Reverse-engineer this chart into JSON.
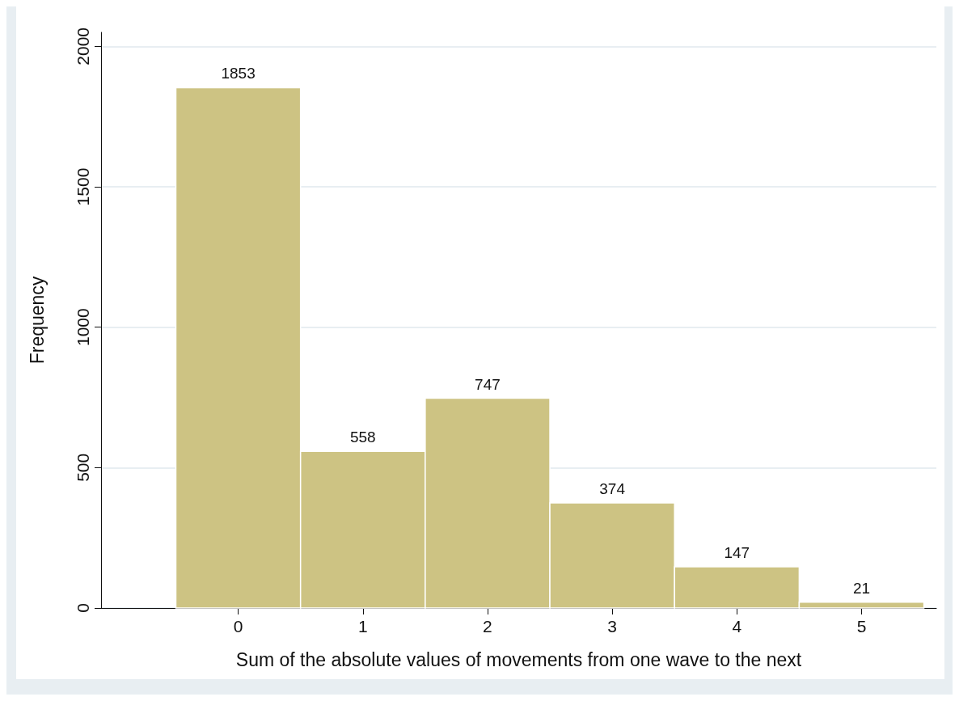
{
  "chart_data": {
    "type": "histogram",
    "xlabel": "Sum of the absolute values of movements from one wave to the next",
    "ylabel": "Frequency",
    "bins": [
      -0.5,
      0.5,
      1.5,
      2.5,
      3.5,
      4.5,
      5.5
    ],
    "values": [
      1853,
      558,
      747,
      374,
      147,
      21
    ],
    "color": "#cdc383",
    "xlim": [
      -1.1,
      5.6
    ],
    "xticks": [
      0,
      1,
      2,
      3,
      4,
      5
    ],
    "ylim": [
      0,
      2050
    ],
    "yticks": [
      0,
      500,
      1000,
      1500,
      2000
    ],
    "grid": "y",
    "data_labels": true
  }
}
